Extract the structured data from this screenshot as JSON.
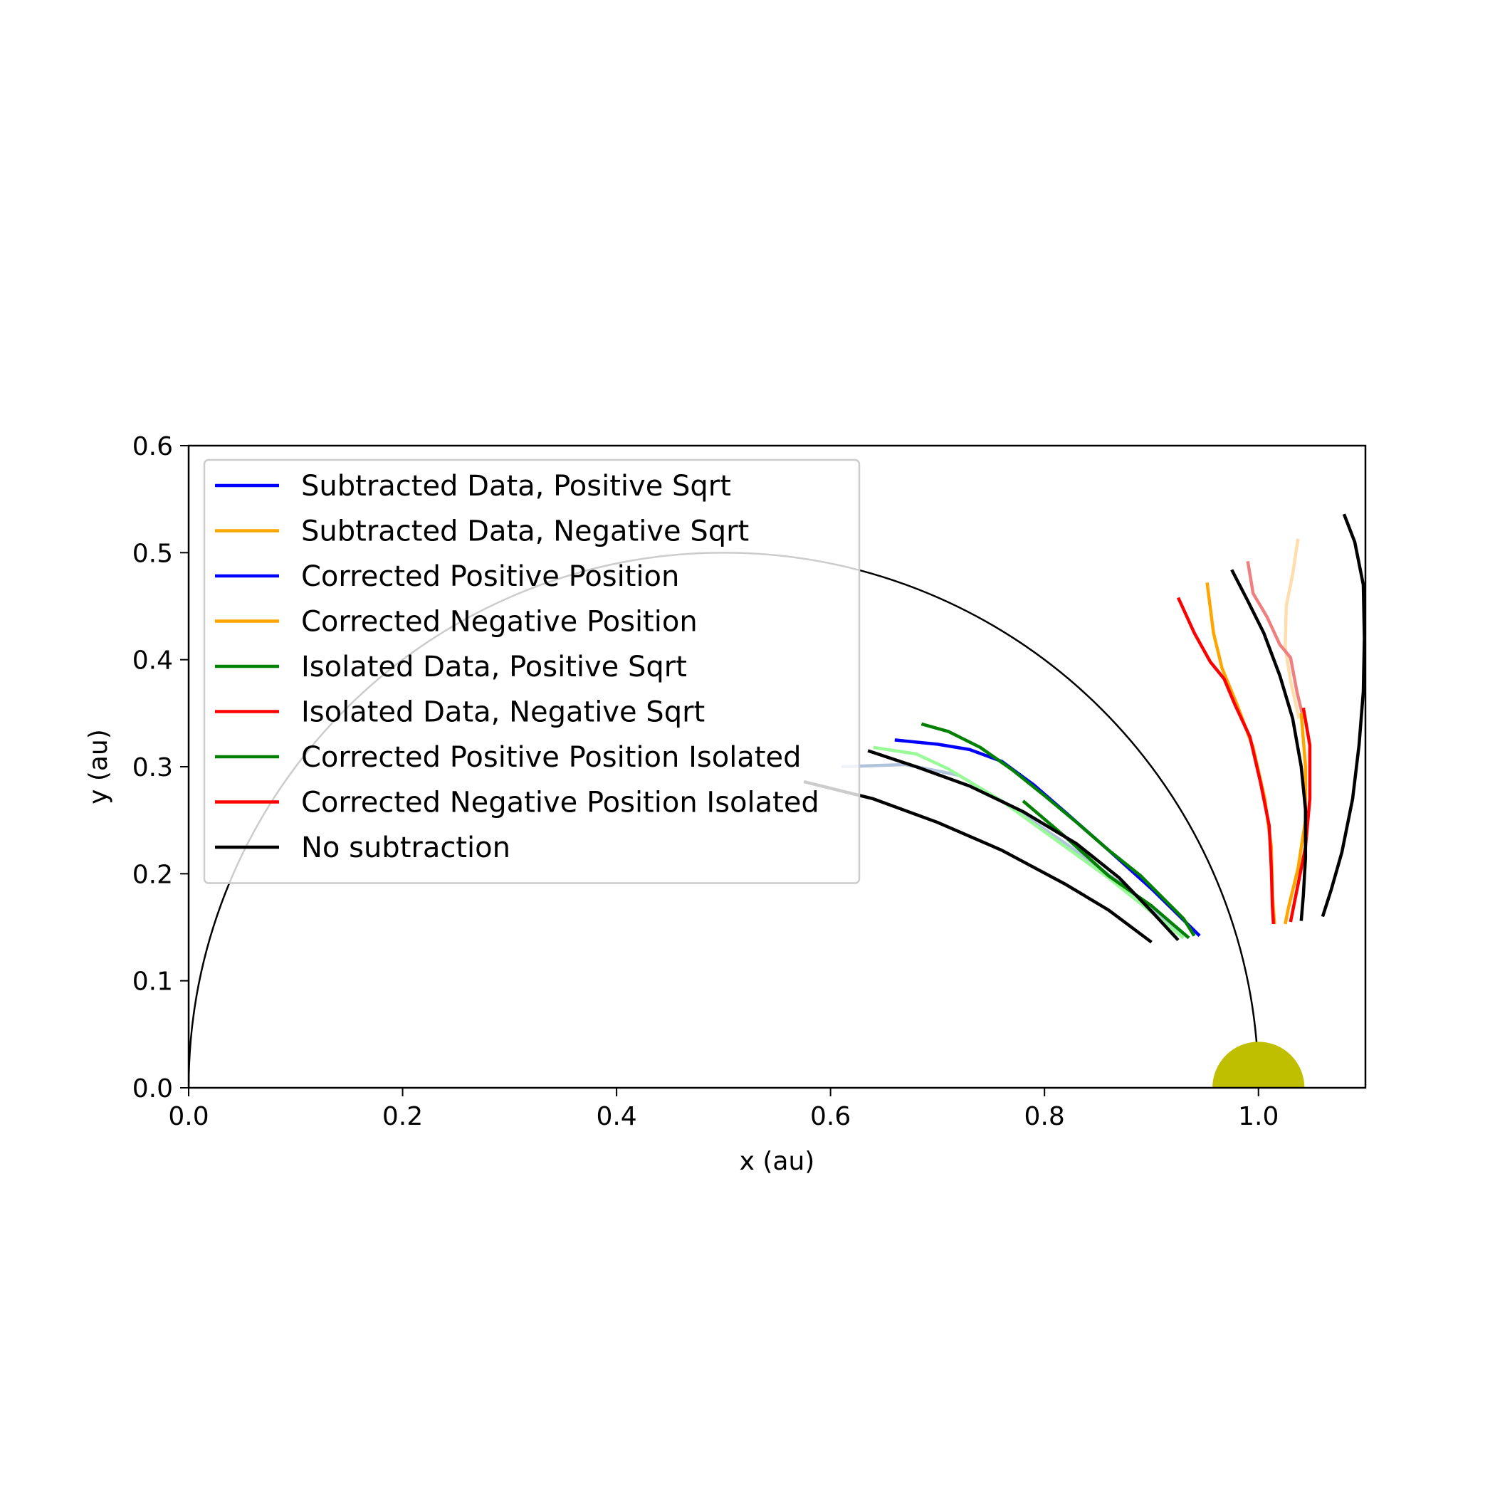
{
  "chart_data": {
    "type": "line",
    "title": "",
    "xlabel": "x (au)",
    "ylabel": "y (au)",
    "xlim": [
      0.0,
      1.1
    ],
    "ylim": [
      0.0,
      0.6
    ],
    "xticks": [
      "0.0",
      "0.2",
      "0.4",
      "0.6",
      "0.8",
      "1.0"
    ],
    "yticks": [
      "0.0",
      "0.1",
      "0.2",
      "0.3",
      "0.4",
      "0.5",
      "0.6"
    ],
    "grid": false,
    "legend_position": "upper-left",
    "reference": {
      "sun_circle": {
        "center": [
          0.5,
          0.0
        ],
        "radius": 0.5,
        "color": "#000000"
      },
      "earth_marker": {
        "center": [
          1.0,
          0.0
        ],
        "radius": 0.043,
        "color": "#bfbf00"
      }
    },
    "legend": [
      {
        "label": "Subtracted Data, Positive Sqrt",
        "color": "#0000ff"
      },
      {
        "label": "Subtracted Data, Negative Sqrt",
        "color": "#ffa500"
      },
      {
        "label": "Corrected Positive Position",
        "color": "#0000ff"
      },
      {
        "label": "Corrected Negative Position",
        "color": "#ffa500"
      },
      {
        "label": "Isolated Data, Positive Sqrt",
        "color": "#008000"
      },
      {
        "label": "Isolated Data, Negative Sqrt",
        "color": "#ff0000"
      },
      {
        "label": "Corrected Positive Position Isolated",
        "color": "#008000"
      },
      {
        "label": "Corrected Negative Position Isolated",
        "color": "#ff0000"
      },
      {
        "label": "No subtraction",
        "color": "#000000"
      }
    ],
    "series": [
      {
        "color": "#b0c4de",
        "points": [
          [
            0.61,
            0.3
          ],
          [
            0.67,
            0.302
          ],
          [
            0.72,
            0.292
          ],
          [
            0.77,
            0.262
          ],
          [
            0.82,
            0.228
          ],
          [
            0.87,
            0.192
          ],
          [
            0.93,
            0.142
          ]
        ]
      },
      {
        "color": "#98fb98",
        "points": [
          [
            0.64,
            0.318
          ],
          [
            0.68,
            0.312
          ],
          [
            0.71,
            0.298
          ],
          [
            0.76,
            0.268
          ],
          [
            0.81,
            0.232
          ],
          [
            0.86,
            0.196
          ],
          [
            0.93,
            0.14
          ]
        ]
      },
      {
        "color": "#0000ff",
        "points": [
          [
            0.66,
            0.325
          ],
          [
            0.7,
            0.321
          ],
          [
            0.73,
            0.316
          ],
          [
            0.76,
            0.305
          ],
          [
            0.79,
            0.283
          ],
          [
            0.82,
            0.257
          ],
          [
            0.86,
            0.222
          ],
          [
            0.9,
            0.186
          ],
          [
            0.945,
            0.142
          ]
        ]
      },
      {
        "color": "#008000",
        "points": [
          [
            0.685,
            0.34
          ],
          [
            0.71,
            0.333
          ],
          [
            0.74,
            0.318
          ],
          [
            0.77,
            0.297
          ],
          [
            0.8,
            0.273
          ],
          [
            0.83,
            0.248
          ],
          [
            0.86,
            0.222
          ],
          [
            0.89,
            0.198
          ],
          [
            0.93,
            0.158
          ],
          [
            0.94,
            0.142
          ]
        ]
      },
      {
        "color": "#008000",
        "points": [
          [
            0.78,
            0.268
          ],
          [
            0.82,
            0.234
          ],
          [
            0.86,
            0.198
          ],
          [
            0.9,
            0.17
          ],
          [
            0.935,
            0.14
          ]
        ]
      },
      {
        "color": "#000000",
        "points": [
          [
            0.575,
            0.286
          ],
          [
            0.64,
            0.27
          ],
          [
            0.7,
            0.248
          ],
          [
            0.76,
            0.222
          ],
          [
            0.82,
            0.19
          ],
          [
            0.86,
            0.166
          ],
          [
            0.9,
            0.136
          ]
        ]
      },
      {
        "color": "#000000",
        "points": [
          [
            0.635,
            0.315
          ],
          [
            0.68,
            0.3
          ],
          [
            0.73,
            0.282
          ],
          [
            0.78,
            0.258
          ],
          [
            0.83,
            0.228
          ],
          [
            0.87,
            0.196
          ],
          [
            0.9,
            0.165
          ],
          [
            0.925,
            0.138
          ]
        ]
      },
      {
        "color": "#ffa500",
        "points": [
          [
            0.952,
            0.472
          ],
          [
            0.958,
            0.425
          ],
          [
            0.966,
            0.392
          ],
          [
            0.98,
            0.358
          ],
          [
            0.995,
            0.318
          ],
          [
            1.006,
            0.27
          ],
          [
            1.012,
            0.225
          ],
          [
            1.013,
            0.18
          ],
          [
            1.015,
            0.153
          ]
        ]
      },
      {
        "color": "#ff0000",
        "points": [
          [
            0.925,
            0.458
          ],
          [
            0.94,
            0.425
          ],
          [
            0.955,
            0.398
          ],
          [
            0.968,
            0.382
          ],
          [
            0.978,
            0.358
          ],
          [
            0.992,
            0.328
          ],
          [
            1.002,
            0.285
          ],
          [
            1.01,
            0.245
          ],
          [
            1.012,
            0.205
          ],
          [
            1.013,
            0.17
          ],
          [
            1.014,
            0.153
          ]
        ]
      },
      {
        "color": "#ffdead",
        "points": [
          [
            1.037,
            0.513
          ],
          [
            1.032,
            0.48
          ],
          [
            1.026,
            0.45
          ],
          [
            1.025,
            0.412
          ],
          [
            1.03,
            0.38
          ],
          [
            1.038,
            0.345
          ]
        ]
      },
      {
        "color": "#f08080",
        "points": [
          [
            0.99,
            0.492
          ],
          [
            0.995,
            0.462
          ],
          [
            1.008,
            0.44
          ],
          [
            1.02,
            0.414
          ],
          [
            1.03,
            0.402
          ],
          [
            1.036,
            0.37
          ],
          [
            1.042,
            0.345
          ]
        ]
      },
      {
        "color": "#ffa500",
        "points": [
          [
            1.04,
            0.35
          ],
          [
            1.044,
            0.3
          ],
          [
            1.044,
            0.25
          ],
          [
            1.037,
            0.205
          ],
          [
            1.028,
            0.168
          ],
          [
            1.025,
            0.153
          ]
        ]
      },
      {
        "color": "#ff0000",
        "points": [
          [
            1.042,
            0.355
          ],
          [
            1.048,
            0.32
          ],
          [
            1.048,
            0.27
          ],
          [
            1.044,
            0.225
          ],
          [
            1.037,
            0.19
          ],
          [
            1.03,
            0.155
          ]
        ]
      },
      {
        "color": "#000000",
        "points": [
          [
            0.975,
            0.484
          ],
          [
            0.99,
            0.455
          ],
          [
            1.005,
            0.425
          ],
          [
            1.02,
            0.385
          ],
          [
            1.032,
            0.345
          ],
          [
            1.04,
            0.3
          ],
          [
            1.044,
            0.26
          ],
          [
            1.044,
            0.215
          ],
          [
            1.042,
            0.18
          ],
          [
            1.04,
            0.156
          ]
        ]
      },
      {
        "color": "#000000",
        "points": [
          [
            1.08,
            0.536
          ],
          [
            1.09,
            0.51
          ],
          [
            1.098,
            0.47
          ],
          [
            1.099,
            0.42
          ],
          [
            1.098,
            0.37
          ],
          [
            1.094,
            0.32
          ],
          [
            1.088,
            0.27
          ],
          [
            1.078,
            0.22
          ],
          [
            1.068,
            0.185
          ],
          [
            1.06,
            0.16
          ]
        ]
      }
    ]
  }
}
